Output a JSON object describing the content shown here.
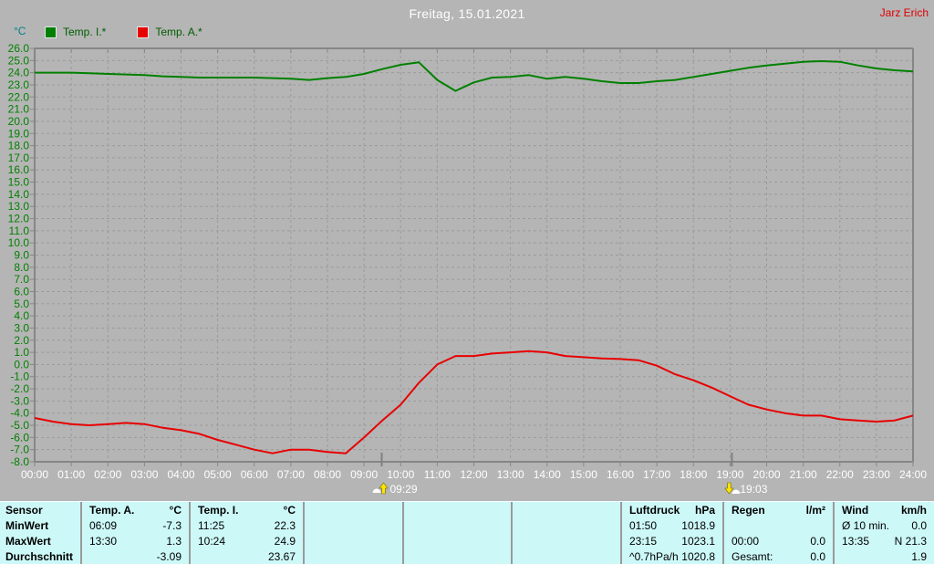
{
  "header": {
    "user": "Jarz Erich"
  },
  "chart_data": {
    "type": "line",
    "title": "Freitag, 15.01.2021",
    "ylabel_unit": "°C",
    "ylim": [
      -8,
      26
    ],
    "ytick_step": 1,
    "grid": true,
    "legend_position": "top-left",
    "x_tick_labels": [
      "00:00",
      "01:00",
      "02:00",
      "03:00",
      "04:00",
      "05:00",
      "06:00",
      "07:00",
      "08:00",
      "09:00",
      "10:00",
      "11:00",
      "12:00",
      "13:00",
      "14:00",
      "15:00",
      "16:00",
      "17:00",
      "18:00",
      "19:00",
      "20:00",
      "21:00",
      "22:00",
      "23:00",
      "24:00"
    ],
    "x_start_hour": 0,
    "x_step_hours": 0.5,
    "series": [
      {
        "name": "Temp. I.*",
        "color": "#008000",
        "values": [
          24.0,
          24.0,
          24.0,
          23.95,
          23.9,
          23.85,
          23.8,
          23.7,
          23.65,
          23.6,
          23.6,
          23.6,
          23.6,
          23.55,
          23.5,
          23.4,
          23.55,
          23.65,
          23.9,
          24.3,
          24.65,
          24.85,
          23.4,
          22.5,
          23.2,
          23.6,
          23.65,
          23.8,
          23.5,
          23.65,
          23.5,
          23.3,
          23.15,
          23.15,
          23.3,
          23.4,
          23.65,
          23.9,
          24.15,
          24.4,
          24.6,
          24.75,
          24.9,
          24.95,
          24.9,
          24.6,
          24.35,
          24.2,
          24.1
        ]
      },
      {
        "name": "Temp. A.*",
        "color": "#e80000",
        "values": [
          -4.4,
          -4.7,
          -4.9,
          -5.0,
          -4.9,
          -4.8,
          -4.9,
          -5.2,
          -5.4,
          -5.7,
          -6.2,
          -6.6,
          -7.0,
          -7.3,
          -7.0,
          -7.0,
          -7.2,
          -7.3,
          -6.0,
          -4.6,
          -3.3,
          -1.5,
          0.0,
          0.7,
          0.7,
          0.9,
          1.0,
          1.1,
          1.0,
          0.7,
          0.6,
          0.5,
          0.45,
          0.35,
          -0.1,
          -0.8,
          -1.3,
          -1.9,
          -2.6,
          -3.3,
          -3.7,
          -4.0,
          -4.2,
          -4.2,
          -4.5,
          -4.6,
          -4.7,
          -4.6,
          -4.2
        ]
      }
    ],
    "annotations": [
      {
        "time": "09:29",
        "x_hour": 9.483,
        "icon": "sunrise"
      },
      {
        "time": "19:03",
        "x_hour": 19.05,
        "icon": "sunset"
      }
    ]
  },
  "table": {
    "row_labels": [
      "Sensor",
      "MinWert",
      "MaxWert",
      "Durchschnitt"
    ],
    "sections": [
      {
        "title": "Temp. A.",
        "unit": "°C",
        "rows": [
          [
            "06:09",
            "-7.3"
          ],
          [
            "13:30",
            "1.3"
          ],
          [
            "",
            "-3.09"
          ]
        ]
      },
      {
        "title": "Temp. I.",
        "unit": "°C",
        "rows": [
          [
            "11:25",
            "22.3"
          ],
          [
            "10:24",
            "24.9"
          ],
          [
            "",
            "23.67"
          ]
        ]
      },
      {
        "title": "",
        "unit": "",
        "rows": [
          [
            "",
            ""
          ],
          [
            "",
            ""
          ],
          [
            "",
            ""
          ]
        ]
      },
      {
        "title": "",
        "unit": "",
        "rows": [
          [
            "",
            ""
          ],
          [
            "",
            ""
          ],
          [
            "",
            ""
          ]
        ]
      },
      {
        "title": "",
        "unit": "",
        "rows": [
          [
            "",
            ""
          ],
          [
            "",
            ""
          ],
          [
            "",
            ""
          ]
        ]
      },
      {
        "title": "Luftdruck",
        "unit": "hPa",
        "rows": [
          [
            "01:50",
            "1018.9"
          ],
          [
            "23:15",
            "1023.1"
          ],
          [
            "^0.7hPa/h",
            "1020.8"
          ]
        ]
      },
      {
        "title": "Regen",
        "unit": "l/m²",
        "rows": [
          [
            "",
            ""
          ],
          [
            "00:00",
            "0.0"
          ],
          [
            "Gesamt:",
            "0.0"
          ]
        ]
      },
      {
        "title": "Wind",
        "unit": "km/h",
        "rows": [
          [
            "Ø 10 min.",
            "0.0"
          ],
          [
            "13:35",
            "N 21.3"
          ],
          [
            "",
            "1.9"
          ]
        ]
      }
    ]
  },
  "colors": {
    "background": "#b5b5b5",
    "plot_border": "#868686",
    "gridline": "#9b9b9b",
    "y_axis_text": "#008000",
    "x_axis_text": "#ffffff",
    "title_text": "#ffffff",
    "user_text": "#e00000",
    "unit_text": "#008080",
    "legend_text": "#005c00",
    "table_background": "#cdf8f8",
    "table_divider": "#9a9a9a",
    "sun_icon_yellow": "#ffe400",
    "sun_icon_white": "#ffffff"
  }
}
